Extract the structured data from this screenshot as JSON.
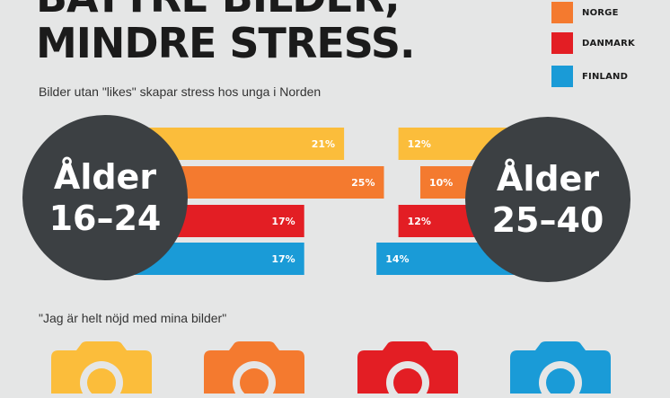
{
  "headline": {
    "line1": "BÄTTRE BILDER,",
    "line2": "MINDRE STRESS."
  },
  "legend": [
    {
      "label": "NORGE",
      "color": "#f47a2f"
    },
    {
      "label": "DANMARK",
      "color": "#e31e24"
    },
    {
      "label": "FINLAND",
      "color": "#1a9bd7"
    }
  ],
  "subtitle": "Bilder utan \"likes\" skapar stress hos unga i Norden",
  "chart_data": {
    "type": "bar",
    "title": "Bilder utan \"likes\" skapar stress hos unga i Norden",
    "series_colors": [
      "#fbbd3b",
      "#f47a2f",
      "#e31e24",
      "#1a9bd7"
    ],
    "groups": [
      {
        "circle_line1": "Ålder",
        "circle_line2": "16–24",
        "values": [
          21,
          25,
          17,
          17
        ],
        "labels": [
          "21%",
          "25%",
          "17%",
          "17%"
        ]
      },
      {
        "circle_line1": "Ålder",
        "circle_line2": "25–40",
        "values": [
          12,
          10,
          12,
          14
        ],
        "labels": [
          "12%",
          "10%",
          "12%",
          "14%"
        ]
      }
    ]
  },
  "quote": "\"Jag är helt nöjd med mina bilder\"",
  "cameras": [
    {
      "color": "#fbbd3b",
      "icon": "camera-icon"
    },
    {
      "color": "#f47a2f",
      "icon": "camera-icon"
    },
    {
      "color": "#e31e24",
      "icon": "camera-icon"
    },
    {
      "color": "#1a9bd7",
      "icon": "camera-icon"
    }
  ]
}
